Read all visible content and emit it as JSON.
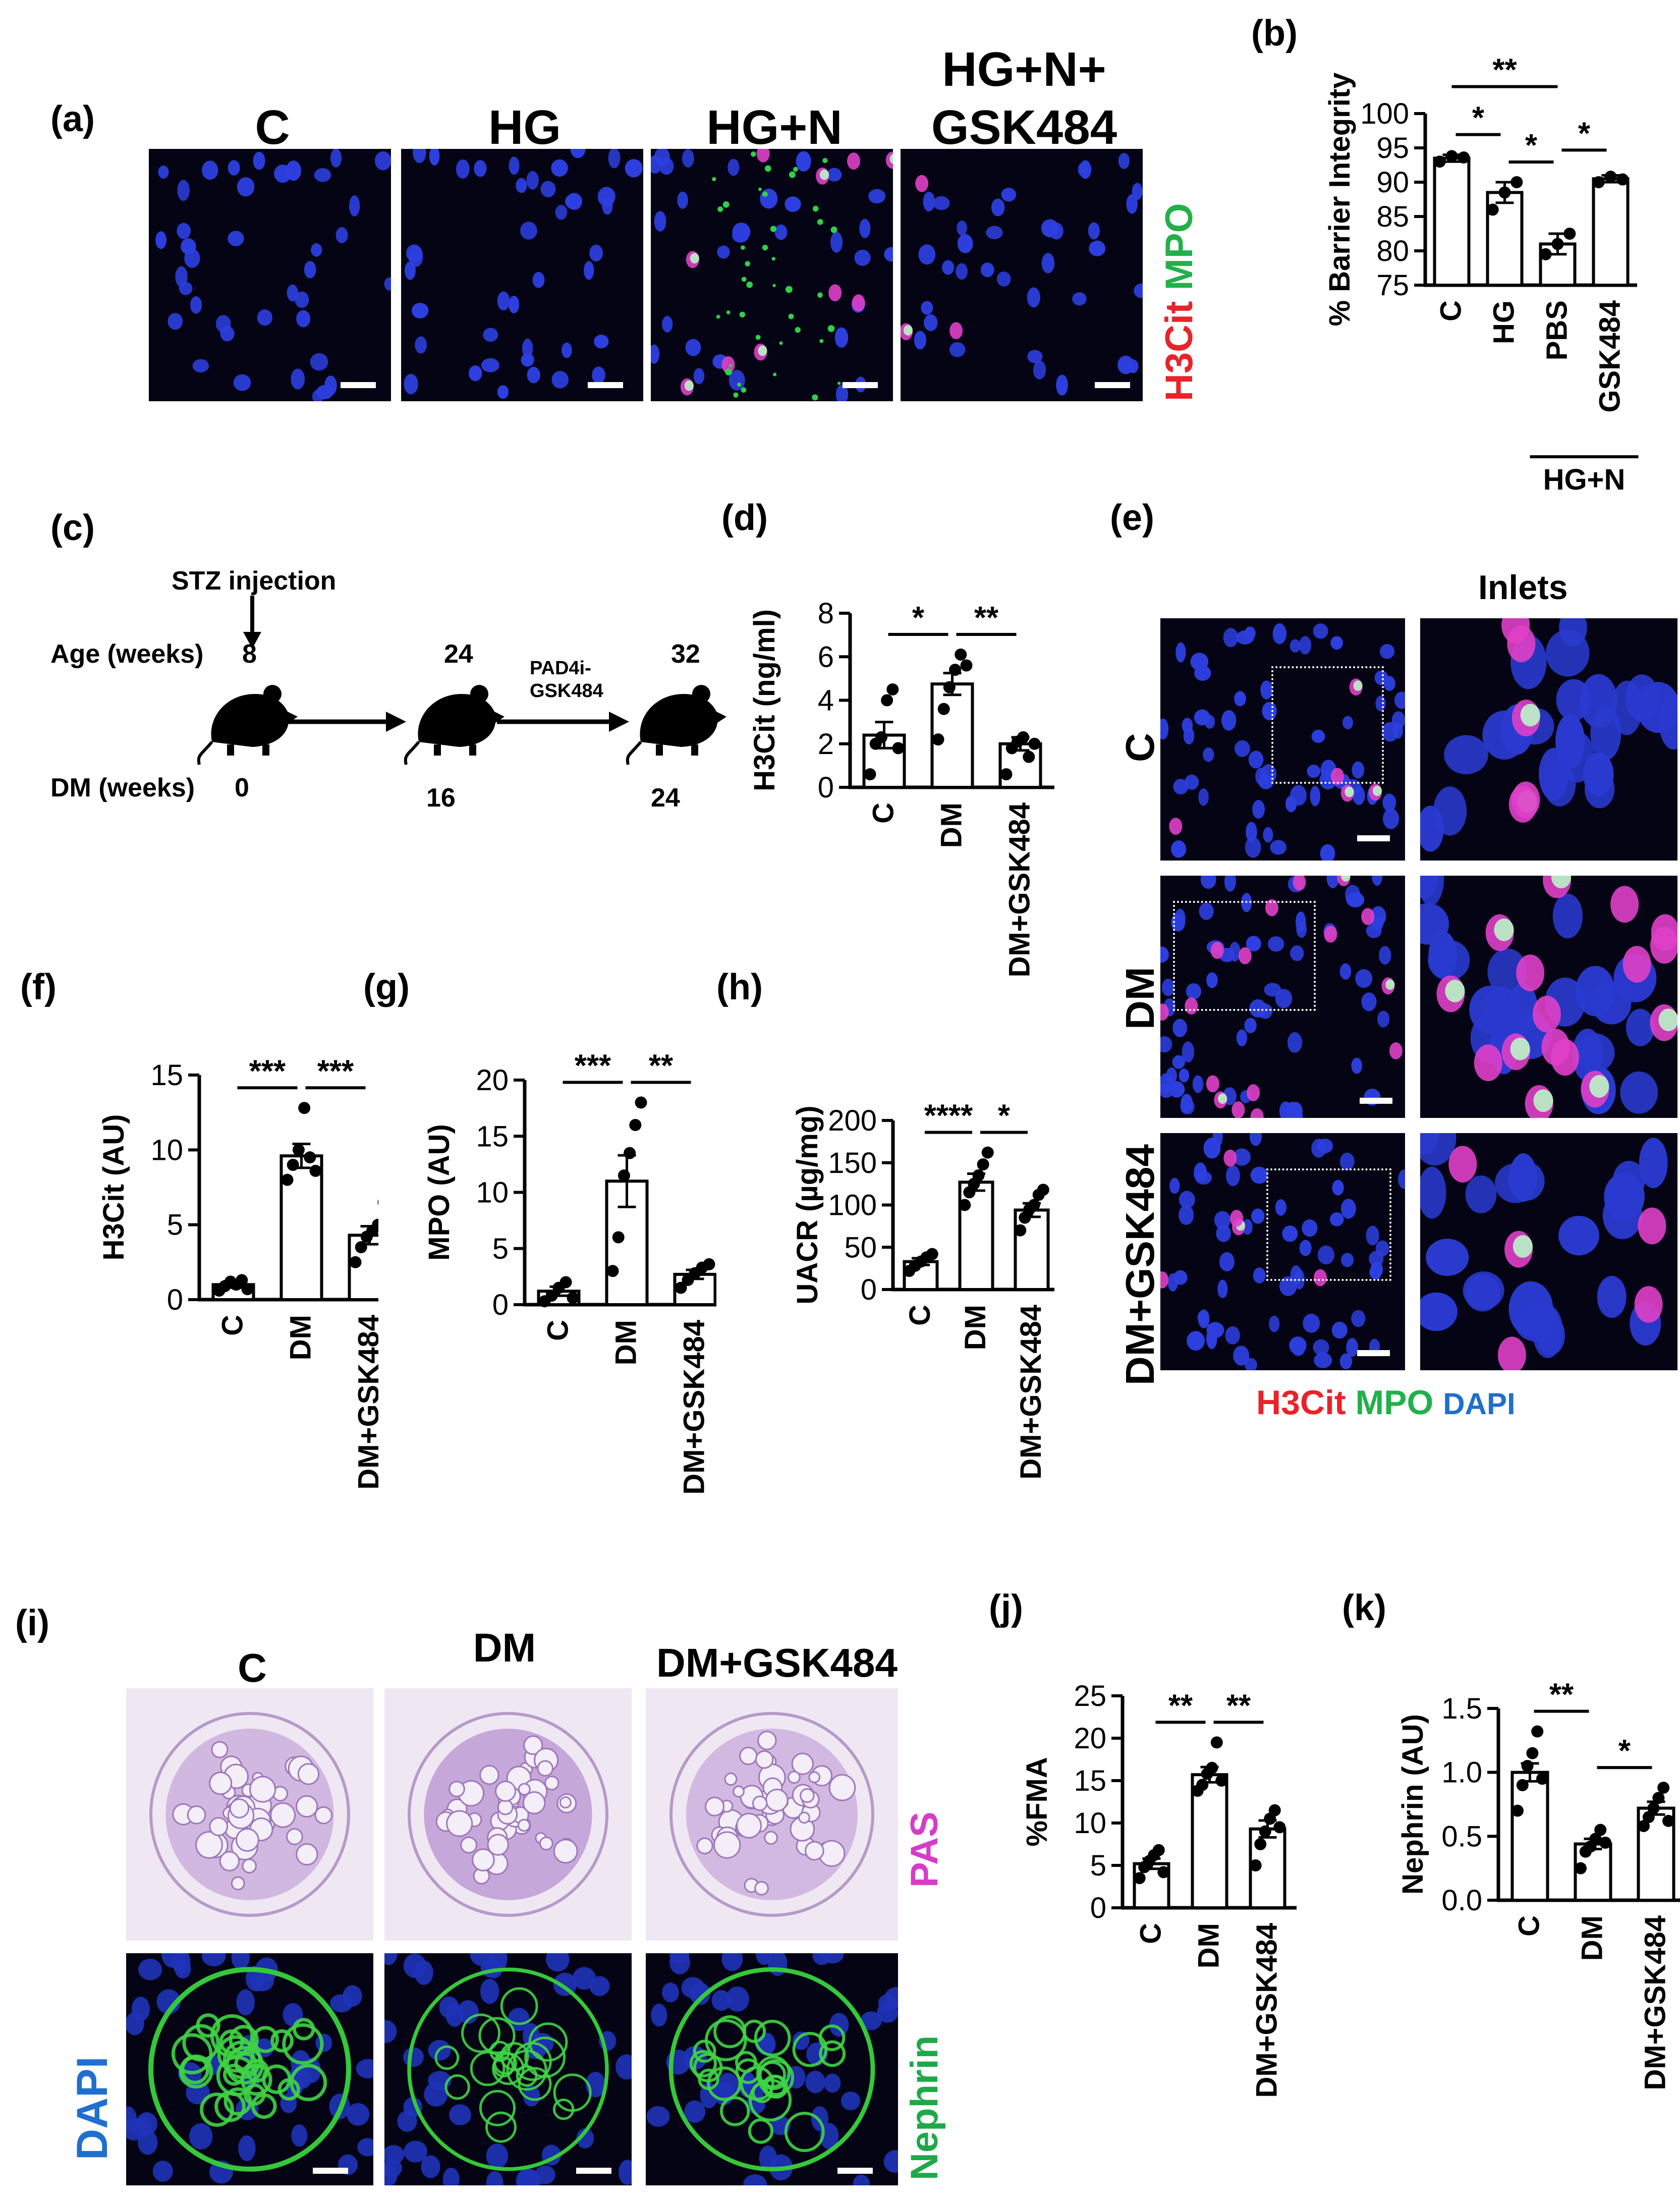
{
  "colors": {
    "h3cit": "#e8232a",
    "mpo": "#22b04b",
    "dapi": "#1f6fce",
    "pas": "#d63cc8",
    "nephrin": "#1fa84a"
  },
  "panel_a": {
    "label": "(a)",
    "titles": [
      "C",
      "HG",
      "HG+N",
      "HG+N+",
      "GSK484"
    ],
    "stain_h3cit": "H3Cit",
    "stain_mpo": "MPO"
  },
  "panel_c": {
    "label": "(c)",
    "stz": "STZ injection",
    "age_label": "Age (weeks)",
    "dm_label": "DM (weeks)",
    "ages": [
      "8",
      "24",
      "32"
    ],
    "dm_weeks": [
      "0",
      "16",
      "24"
    ],
    "drug_line1": "PAD4i-",
    "drug_line2": "GSK484"
  },
  "panel_e": {
    "label": "(e)",
    "inlets": "Inlets",
    "rows": [
      "C",
      "DM",
      "DM+GSK484"
    ],
    "legend_h3cit": "H3Cit",
    "legend_mpo": "MPO",
    "legend_dapi": "DAPI"
  },
  "panel_i": {
    "label": "(i)",
    "titles": [
      "C",
      "DM",
      "DM+GSK484"
    ],
    "pas": "PAS",
    "dapi": "DAPI",
    "nephrin": "Nephrin"
  },
  "chart_data": [
    {
      "id": "b",
      "label": "(b)",
      "type": "bar",
      "ylabel": "% Barrier Integrity",
      "ylim": [
        75,
        100
      ],
      "yticks": [
        "75",
        "80",
        "85",
        "90",
        "95",
        "100"
      ],
      "categories": [
        "C",
        "HG",
        "PBS",
        "GSK484"
      ],
      "values": [
        93.5,
        88.5,
        81,
        90.5
      ],
      "errors": [
        0.5,
        1.5,
        1.5,
        0.5
      ],
      "points": [
        [
          93,
          93.8,
          93.6
        ],
        [
          86,
          88.5,
          90
        ],
        [
          79.5,
          81,
          82.5
        ],
        [
          90,
          90.8,
          90.4
        ]
      ],
      "group_label": "HG+N",
      "significance": [
        {
          "from": 0,
          "to": 2,
          "text": "**"
        },
        {
          "from": 0,
          "to": 1,
          "text": "*"
        },
        {
          "from": 1,
          "to": 2,
          "text": "*"
        },
        {
          "from": 2,
          "to": 3,
          "text": "*"
        }
      ]
    },
    {
      "id": "d",
      "label": "(d)",
      "type": "bar",
      "ylabel": "H3Cit (ng/ml)",
      "ylim": [
        0,
        8
      ],
      "yticks": [
        "0",
        "2",
        "4",
        "6",
        "8"
      ],
      "categories": [
        "C",
        "DM",
        "DM+GSK484"
      ],
      "values": [
        2.4,
        4.75,
        2.0
      ],
      "errors": [
        0.6,
        0.5,
        0.3
      ],
      "points": [
        [
          0.6,
          2.0,
          2.3,
          4.0,
          4.5,
          1.8
        ],
        [
          2.2,
          3.6,
          4.6,
          5.4,
          6.1,
          5.6
        ],
        [
          0.6,
          1.8,
          2.1,
          2.3,
          1.4,
          2.0
        ]
      ],
      "significance": [
        {
          "from": 0,
          "to": 1,
          "text": "*"
        },
        {
          "from": 1,
          "to": 2,
          "text": "**"
        }
      ]
    },
    {
      "id": "f",
      "label": "(f)",
      "type": "bar",
      "ylabel": "H3Cit (AU)",
      "ylim": [
        0,
        15
      ],
      "yticks": [
        "0",
        "5",
        "10",
        "15"
      ],
      "categories": [
        "C",
        "DM",
        "DM+GSK484"
      ],
      "values": [
        1.0,
        9.6,
        4.3
      ],
      "errors": [
        0.2,
        0.8,
        0.6
      ],
      "points": [
        [
          0.6,
          0.9,
          1.2,
          1.0,
          1.3,
          0.7
        ],
        [
          8.0,
          9.0,
          10.0,
          12.8,
          9.5,
          8.6
        ],
        [
          2.5,
          3.5,
          4.2,
          4.6,
          5.0,
          6.5
        ]
      ],
      "significance": [
        {
          "from": 0,
          "to": 1,
          "text": "***"
        },
        {
          "from": 1,
          "to": 2,
          "text": "***"
        }
      ]
    },
    {
      "id": "g",
      "label": "(g)",
      "type": "bar",
      "ylabel": "MPO (AU)",
      "ylim": [
        0,
        20
      ],
      "yticks": [
        "0",
        "5",
        "10",
        "15",
        "20"
      ],
      "categories": [
        "C",
        "DM",
        "DM+GSK484"
      ],
      "values": [
        1.2,
        11.0,
        2.7
      ],
      "errors": [
        0.4,
        2.3,
        0.4
      ],
      "points": [
        [
          0.3,
          0.8,
          1.5,
          2.0,
          0.6
        ],
        [
          3.0,
          6.0,
          11.5,
          13.5,
          16.0,
          18.0
        ],
        [
          1.5,
          2.2,
          2.8,
          3.3,
          3.6
        ]
      ],
      "significance": [
        {
          "from": 0,
          "to": 1,
          "text": "***"
        },
        {
          "from": 1,
          "to": 2,
          "text": "**"
        }
      ]
    },
    {
      "id": "h",
      "label": "(h)",
      "type": "bar",
      "ylabel": "UACR (µg/mg)",
      "ylim": [
        0,
        200
      ],
      "yticks": [
        "0",
        "50",
        "100",
        "150",
        "200"
      ],
      "categories": [
        "C",
        "DM",
        "DM+GSK484"
      ],
      "values": [
        33,
        127,
        94
      ],
      "errors": [
        4,
        10,
        8
      ],
      "points": [
        [
          22,
          28,
          33,
          38,
          42
        ],
        [
          100,
          115,
          125,
          135,
          148,
          162
        ],
        [
          70,
          85,
          95,
          100,
          112,
          118
        ]
      ],
      "significance": [
        {
          "from": 0,
          "to": 1,
          "text": "****"
        },
        {
          "from": 1,
          "to": 2,
          "text": "*"
        }
      ]
    },
    {
      "id": "j",
      "label": "(j)",
      "type": "bar",
      "ylabel": "%FMA",
      "ylim": [
        0,
        25
      ],
      "yticks": [
        "0",
        "5",
        "10",
        "15",
        "20",
        "25"
      ],
      "categories": [
        "C",
        "DM",
        "DM+GSK484"
      ],
      "values": [
        5.2,
        15.7,
        9.3
      ],
      "errors": [
        0.6,
        0.9,
        1.0
      ],
      "points": [
        [
          3.5,
          4.8,
          5.5,
          6.2,
          6.8,
          4.2
        ],
        [
          13.8,
          14.5,
          15.8,
          16.5,
          19.5,
          15.0
        ],
        [
          5.0,
          7.5,
          9.0,
          10.5,
          11.5,
          9.5
        ]
      ],
      "significance": [
        {
          "from": 0,
          "to": 1,
          "text": "**"
        },
        {
          "from": 1,
          "to": 2,
          "text": "**"
        }
      ]
    },
    {
      "id": "k",
      "label": "(k)",
      "type": "bar",
      "ylabel": "Nephrin (AU)",
      "ylim": [
        0,
        1.5
      ],
      "yticks": [
        "0.0",
        "0.5",
        "1.0",
        "1.5"
      ],
      "categories": [
        "C",
        "DM",
        "DM+GSK484"
      ],
      "values": [
        1.0,
        0.44,
        0.72
      ],
      "errors": [
        0.07,
        0.04,
        0.05
      ],
      "points": [
        [
          0.7,
          0.9,
          1.05,
          1.15,
          1.32,
          0.95
        ],
        [
          0.25,
          0.38,
          0.42,
          0.48,
          0.55,
          0.45
        ],
        [
          0.58,
          0.65,
          0.72,
          0.8,
          0.88,
          0.62
        ]
      ],
      "significance": [
        {
          "from": 0,
          "to": 1,
          "text": "**"
        },
        {
          "from": 1,
          "to": 2,
          "text": "*"
        }
      ]
    }
  ]
}
